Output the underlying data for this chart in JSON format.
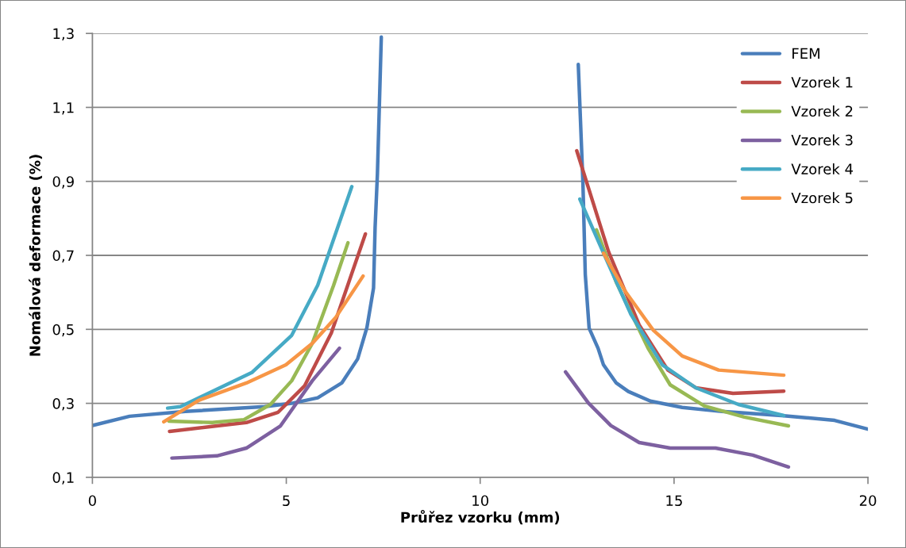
{
  "chart_data": {
    "type": "line",
    "xlabel": "Průřez vzorku (mm)",
    "ylabel": "Nomálová deformace (%)",
    "xlim": [
      0,
      20
    ],
    "xticks": [
      0,
      5,
      10,
      15,
      20
    ],
    "ylim": [
      0.1,
      1.3
    ],
    "yticks": [
      {
        "value": 0.1,
        "label": "0,1"
      },
      {
        "value": 0.3,
        "label": "0,3"
      },
      {
        "value": 0.5,
        "label": "0,5"
      },
      {
        "value": 0.7,
        "label": "0,7"
      },
      {
        "value": 0.9,
        "label": "0,9"
      },
      {
        "value": 1.1,
        "label": "1,1"
      },
      {
        "value": 1.3,
        "label": "1,3"
      }
    ],
    "grid": "y",
    "legend": "top right",
    "marker": "none",
    "line_style": "solid",
    "series": [
      {
        "name": "FEM",
        "color": "#4a7ebb",
        "x": [
          0,
          0.96,
          2.4,
          4.44,
          5.14,
          5.81,
          6.43,
          6.84,
          7.08,
          7.25,
          7.29,
          7.35,
          7.45,
          10,
          12.53,
          12.65,
          12.71,
          12.81,
          13.04,
          13.18,
          13.51,
          13.82,
          14.39,
          15.21,
          16.23,
          17.77,
          19.14,
          20
        ],
        "values": [
          0.24,
          0.265,
          0.278,
          0.291,
          0.3,
          0.315,
          0.355,
          0.42,
          0.505,
          0.612,
          0.775,
          0.92,
          1.29,
          null,
          1.216,
          0.895,
          0.649,
          0.503,
          0.449,
          0.404,
          0.355,
          0.332,
          0.306,
          0.289,
          0.278,
          0.267,
          0.254,
          0.23
        ]
      },
      {
        "name": "Vzorek 1",
        "color": "#be4b48",
        "x": [
          1.99,
          3.97,
          4.79,
          5.47,
          6.16,
          6.63,
          7.04,
          10,
          12.49,
          13.31,
          14.1,
          14.84,
          15.56,
          16.52,
          17.83
        ],
        "values": [
          0.224,
          0.248,
          0.276,
          0.347,
          0.49,
          0.633,
          0.758,
          null,
          0.983,
          0.71,
          0.512,
          0.39,
          0.342,
          0.327,
          0.333
        ]
      },
      {
        "name": "Vzorek 2",
        "color": "#98b954",
        "x": [
          1.97,
          3.09,
          3.91,
          4.59,
          5.14,
          5.67,
          6.22,
          6.59,
          10,
          13.0,
          13.51,
          14.33,
          14.9,
          15.78,
          16.81,
          17.95
        ],
        "values": [
          0.252,
          0.248,
          0.256,
          0.297,
          0.361,
          0.462,
          0.619,
          0.734,
          null,
          0.769,
          0.627,
          0.449,
          0.35,
          0.293,
          0.263,
          0.239
        ]
      },
      {
        "name": "Vzorek 3",
        "color": "#7d60a0",
        "x": [
          2.05,
          3.21,
          3.97,
          4.85,
          5.67,
          6.37,
          10,
          12.2,
          12.79,
          13.37,
          14.1,
          14.9,
          16.07,
          17.03,
          17.95
        ],
        "values": [
          0.152,
          0.158,
          0.179,
          0.239,
          0.361,
          0.449,
          null,
          0.385,
          0.301,
          0.24,
          0.194,
          0.179,
          0.179,
          0.16,
          0.128
        ]
      },
      {
        "name": "Vzorek 4",
        "color": "#46aac5",
        "x": [
          1.94,
          2.27,
          4.11,
          5.14,
          5.81,
          6.69,
          10,
          12.57,
          13.16,
          13.88,
          14.7,
          15.56,
          16.66,
          17.83
        ],
        "values": [
          0.287,
          0.291,
          0.383,
          0.484,
          0.619,
          0.886,
          null,
          0.852,
          0.711,
          0.542,
          0.404,
          0.342,
          0.297,
          0.267
        ]
      },
      {
        "name": "Vzorek 5",
        "color": "#f79646",
        "x": [
          1.84,
          2.74,
          3.97,
          4.99,
          5.67,
          6.28,
          6.98,
          10,
          13.18,
          13.74,
          14.47,
          15.21,
          16.15,
          17.83
        ],
        "values": [
          0.25,
          0.308,
          0.355,
          0.404,
          0.462,
          0.533,
          0.644,
          null,
          0.706,
          0.603,
          0.497,
          0.428,
          0.39,
          0.376
        ]
      }
    ]
  }
}
